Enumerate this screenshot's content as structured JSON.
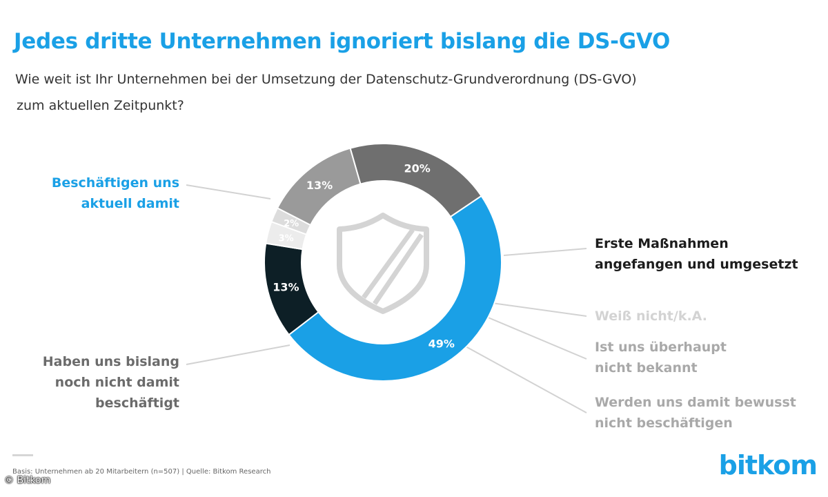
{
  "colors": {
    "accent": "#1aa0e6",
    "dark": "#0d1f26",
    "gray_dark": "#6f6f6f",
    "gray_mid": "#9a9a9a",
    "gray_light": "#dcdcdc",
    "gray_lighter": "#ececec",
    "label_gray": "#a9a9a9",
    "label_light": "#d3d3d3"
  },
  "header": {
    "title": "Jedes dritte Unternehmen ignoriert bislang die DS-GVO",
    "subtitle_line1": "Wie weit ist Ihr Unternehmen bei der Umsetzung der Datenschutz-Grundverordnung (DS-GVO)",
    "subtitle_line2": "zum aktuellen Zeitpunkt?"
  },
  "chart_data": {
    "type": "pie",
    "variant": "donut",
    "title": "Jedes dritte Unternehmen ignoriert bislang die DS-GVO",
    "center_icon": "shield-icon",
    "slices": [
      {
        "key": "beschaeftigen",
        "label_lines": [
          "Beschäftigen uns",
          "aktuell damit"
        ],
        "value": 49,
        "value_label": "49%",
        "color": "#1aa0e6",
        "label_color": "#1aa0e6",
        "value_text_color": "#ffffff"
      },
      {
        "key": "erste",
        "label_lines": [
          "Erste Maßnahmen",
          "angefangen und umgesetzt"
        ],
        "value": 13,
        "value_label": "13%",
        "color": "#0d1f26",
        "label_color": "#1c1c1c",
        "value_text_color": "#ffffff"
      },
      {
        "key": "weiss",
        "label_lines": [
          "Weiß nicht/k.A."
        ],
        "value": 3,
        "value_label": "3%",
        "color": "#ececec",
        "label_color": "#d3d3d3",
        "value_text_color": "#ffffff"
      },
      {
        "key": "bekannt",
        "label_lines": [
          "Ist uns überhaupt",
          "nicht bekannt"
        ],
        "value": 2,
        "value_label": "2%",
        "color": "#dcdcdc",
        "label_color": "#a9a9a9",
        "value_text_color": "#ffffff"
      },
      {
        "key": "bewusst",
        "label_lines": [
          "Werden uns damit bewusst",
          "nicht beschäftigen"
        ],
        "value": 13,
        "value_label": "13%",
        "color": "#9a9a9a",
        "label_color": "#a9a9a9",
        "value_text_color": "#ffffff"
      },
      {
        "key": "bislang",
        "label_lines": [
          "Haben uns bislang",
          "noch nicht damit",
          "beschäftigt"
        ],
        "value": 20,
        "value_label": "20%",
        "color": "#6f6f6f",
        "label_color": "#6b6b6b",
        "value_text_color": "#ffffff"
      }
    ]
  },
  "footer": {
    "note": "Basis: Unternehmen ab 20 Mitarbeitern (n=507) | Quelle: Bitkom Research",
    "brand": "bitkom",
    "copyright": "© Bitkom"
  }
}
